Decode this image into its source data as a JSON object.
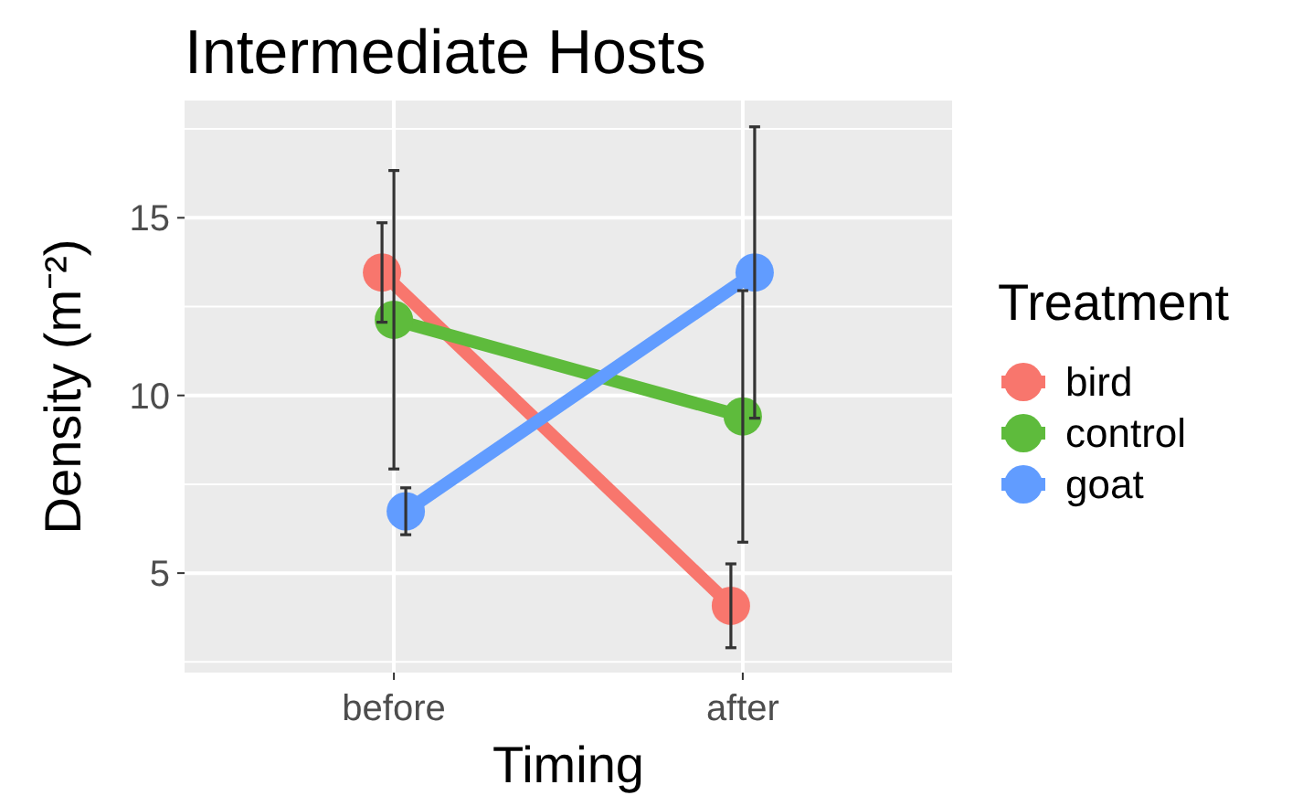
{
  "chart_data": {
    "type": "line",
    "title": "Intermediate Hosts",
    "xlabel": "Timing",
    "ylabel": "Density (m⁻²)",
    "legend_title": "Treatment",
    "categories": [
      "before",
      "after"
    ],
    "series": [
      {
        "name": "bird",
        "color": "#f8766d",
        "values": [
          13.46,
          4.08
        ],
        "errors": [
          1.4,
          1.18
        ]
      },
      {
        "name": "control",
        "color": "#5ebb3c",
        "values": [
          12.13,
          9.41
        ],
        "errors": [
          4.2,
          3.54
        ]
      },
      {
        "name": "goat",
        "color": "#619cff",
        "values": [
          6.74,
          13.46
        ],
        "errors": [
          0.66,
          4.1
        ]
      }
    ],
    "ylim": [
      2.2,
      18.3
    ],
    "yticks": [
      5,
      10,
      15
    ],
    "grid": true,
    "legend": "right",
    "marker": "circle",
    "line_style": "solid"
  }
}
